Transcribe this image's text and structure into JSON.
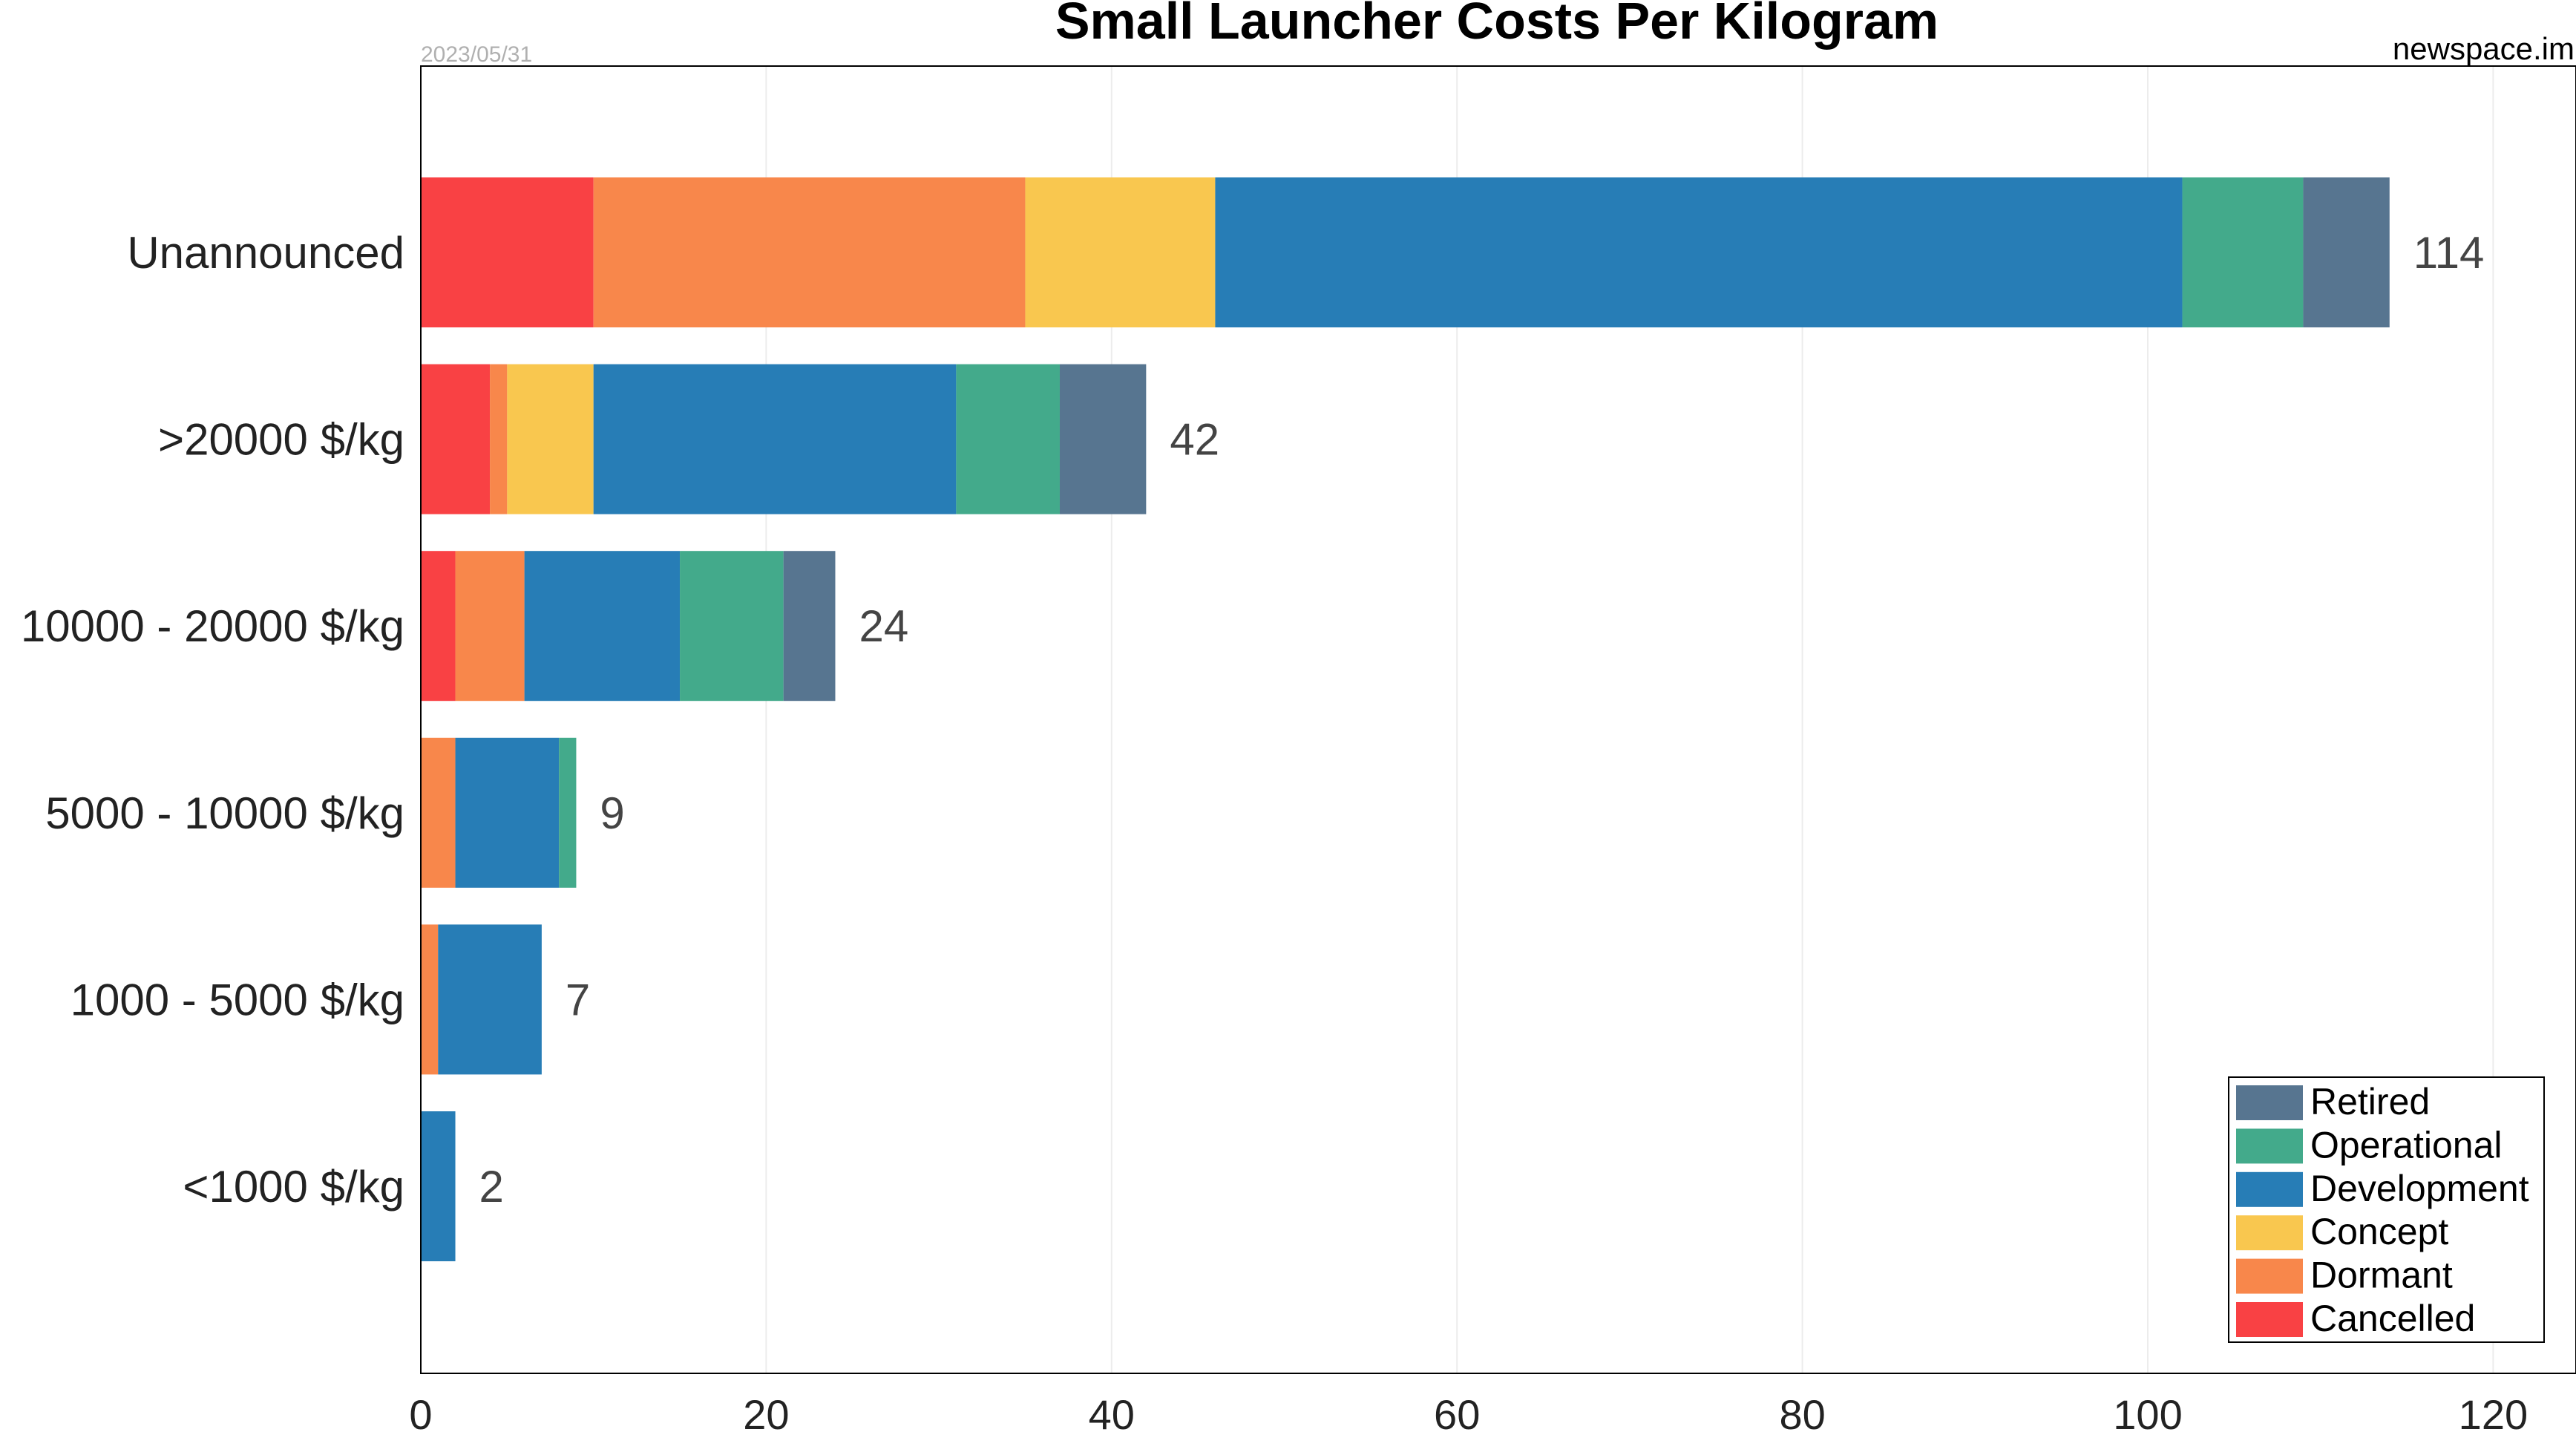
{
  "chart_data": {
    "type": "bar",
    "orientation": "horizontal",
    "stacked": true,
    "title": "Small Launcher Costs Per Kilogram",
    "date": "2023/05/31",
    "source": "newspace.im",
    "categories": [
      "Unannounced",
      ">20000 $/kg",
      "10000 - 20000 $/kg",
      "5000 - 10000 $/kg",
      "1000 - 5000 $/kg",
      "<1000 $/kg"
    ],
    "series": [
      {
        "name": "Cancelled",
        "color": "#f94144",
        "values": [
          10,
          4,
          2,
          0,
          0,
          0
        ]
      },
      {
        "name": "Dormant",
        "color": "#f8874b",
        "values": [
          25,
          1,
          4,
          2,
          1,
          0
        ]
      },
      {
        "name": "Concept",
        "color": "#f9c74f",
        "values": [
          11,
          5,
          0,
          0,
          0,
          0
        ]
      },
      {
        "name": "Development",
        "color": "#277db6",
        "values": [
          56,
          21,
          9,
          6,
          6,
          2
        ]
      },
      {
        "name": "Operational",
        "color": "#43aa8b",
        "values": [
          7,
          6,
          6,
          1,
          0,
          0
        ]
      },
      {
        "name": "Retired",
        "color": "#577590",
        "values": [
          5,
          5,
          3,
          0,
          0,
          0
        ]
      }
    ],
    "totals": [
      "114",
      "42",
      "24",
      "9",
      "7",
      "2"
    ],
    "xlim": [
      0,
      124
    ],
    "xticks": [
      "0",
      "20",
      "40",
      "60",
      "80",
      "100",
      "120"
    ],
    "xtick_values": [
      0,
      20,
      40,
      60,
      80,
      100,
      120
    ],
    "grid": "vertical",
    "legend": {
      "placement": "bottom-right",
      "order": [
        "Retired",
        "Operational",
        "Development",
        "Concept",
        "Dormant",
        "Cancelled"
      ]
    }
  }
}
